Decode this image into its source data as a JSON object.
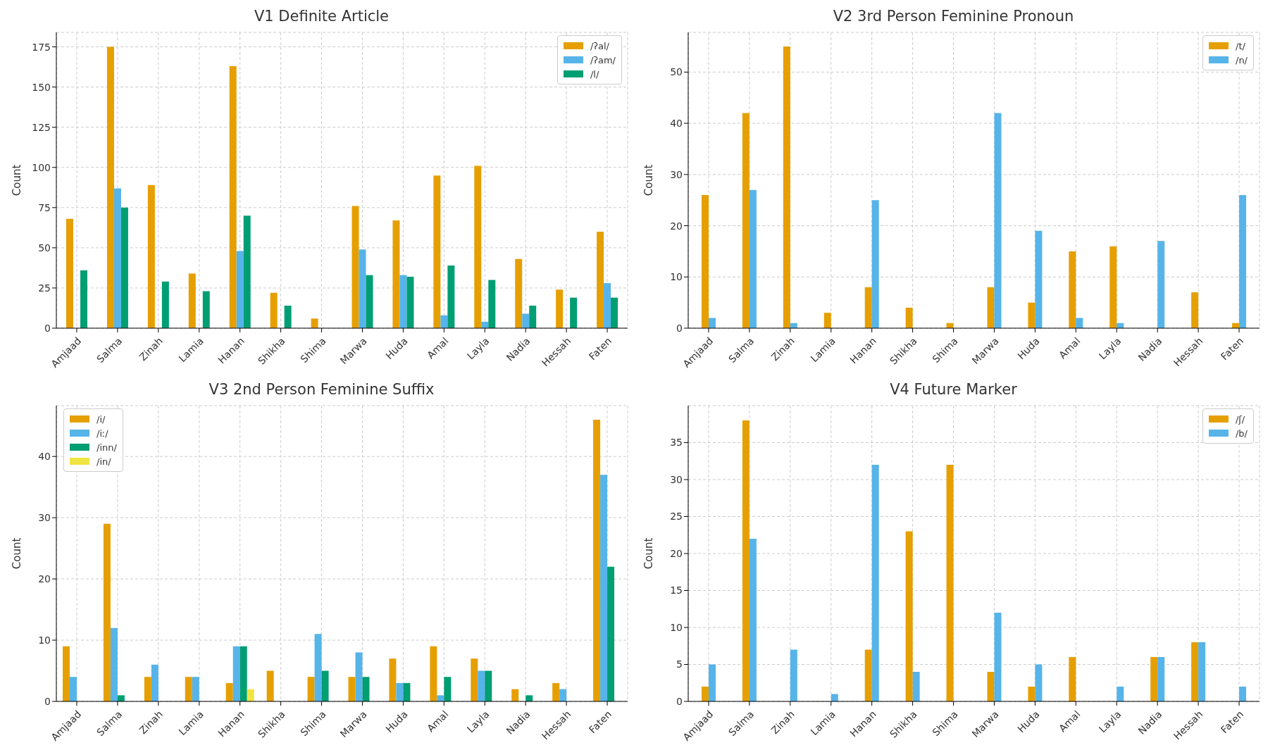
{
  "chart_data": [
    {
      "type": "bar",
      "title": "V1 Definite Article",
      "ylabel": "Count",
      "categories": [
        "Amjaad",
        "Salma",
        "Zinah",
        "Lamia",
        "Hanan",
        "Shikha",
        "Shima",
        "Marwa",
        "Huda",
        "Amal",
        "Layla",
        "Nadia",
        "Hessah",
        "Faten"
      ],
      "series": [
        {
          "name": "/ʔal/",
          "color": "#e69f00",
          "values": [
            68,
            175,
            89,
            34,
            163,
            22,
            6,
            76,
            67,
            95,
            101,
            43,
            24,
            60
          ]
        },
        {
          "name": "/ʔam/",
          "color": "#56b4e9",
          "values": [
            0,
            87,
            0,
            0,
            48,
            0,
            0,
            49,
            33,
            8,
            4,
            9,
            0,
            28
          ]
        },
        {
          "name": "/l/",
          "color": "#009e73",
          "values": [
            36,
            75,
            29,
            23,
            70,
            14,
            0,
            33,
            32,
            39,
            30,
            14,
            19,
            19
          ]
        }
      ],
      "ylim": [
        0,
        184
      ],
      "yticks": [
        0,
        25,
        50,
        75,
        100,
        125,
        150,
        175
      ],
      "grid": true,
      "legend": "top right"
    },
    {
      "type": "bar",
      "title": "V2 3rd Person Feminine Pronoun",
      "ylabel": "Count",
      "categories": [
        "Amjaad",
        "Salma",
        "Zinah",
        "Lamia",
        "Hanan",
        "Shikha",
        "Shima",
        "Marwa",
        "Huda",
        "Amal",
        "Layla",
        "Nadia",
        "Hessah",
        "Faten"
      ],
      "series": [
        {
          "name": "/t/",
          "color": "#e69f00",
          "values": [
            26,
            42,
            55,
            3,
            8,
            4,
            1,
            8,
            5,
            15,
            16,
            0,
            7,
            1
          ]
        },
        {
          "name": "/n/",
          "color": "#56b4e9",
          "values": [
            2,
            27,
            1,
            0,
            25,
            0,
            0,
            42,
            19,
            2,
            1,
            17,
            0,
            26
          ]
        }
      ],
      "ylim": [
        0,
        57.75
      ],
      "yticks": [
        0,
        10,
        20,
        30,
        40,
        50
      ],
      "grid": true,
      "legend": "top right"
    },
    {
      "type": "bar",
      "title": "V3 2nd Person Feminine Suffix",
      "ylabel": "Count",
      "categories": [
        "Amjaad",
        "Salma",
        "Zinah",
        "Lamia",
        "Hanan",
        "Shikha",
        "Shima",
        "Marwa",
        "Huda",
        "Amal",
        "Layla",
        "Nadia",
        "Hessah",
        "Faten"
      ],
      "series": [
        {
          "name": "/i/",
          "color": "#e69f00",
          "values": [
            9,
            29,
            4,
            4,
            3,
            5,
            4,
            4,
            7,
            9,
            7,
            2,
            3,
            46
          ]
        },
        {
          "name": "/iː/",
          "color": "#56b4e9",
          "values": [
            4,
            12,
            6,
            4,
            9,
            0,
            11,
            8,
            3,
            1,
            5,
            0,
            2,
            37
          ]
        },
        {
          "name": "/inn/",
          "color": "#009e73",
          "values": [
            0,
            1,
            0,
            0,
            9,
            0,
            5,
            4,
            3,
            4,
            5,
            1,
            0,
            22
          ]
        },
        {
          "name": "/in/",
          "color": "#f0e442",
          "values": [
            0,
            0,
            0,
            0,
            2,
            0,
            0,
            0,
            0,
            0,
            0,
            0,
            0,
            0
          ]
        }
      ],
      "ylim": [
        0,
        48.3
      ],
      "yticks": [
        0,
        10,
        20,
        30,
        40
      ],
      "grid": true,
      "legend": "top left"
    },
    {
      "type": "bar",
      "title": "V4 Future Marker",
      "ylabel": "Count",
      "categories": [
        "Amjaad",
        "Salma",
        "Zinah",
        "Lamia",
        "Hanan",
        "Shikha",
        "Shima",
        "Marwa",
        "Huda",
        "Amal",
        "Layla",
        "Nadia",
        "Hessah",
        "Faten"
      ],
      "series": [
        {
          "name": "/ʃ/",
          "color": "#e69f00",
          "values": [
            2,
            38,
            0,
            0,
            7,
            23,
            32,
            4,
            2,
            6,
            0,
            6,
            8,
            0
          ]
        },
        {
          "name": "/b/",
          "color": "#56b4e9",
          "values": [
            5,
            22,
            7,
            1,
            32,
            4,
            0,
            12,
            5,
            0,
            2,
            6,
            8,
            2
          ]
        }
      ],
      "ylim": [
        0,
        40
      ],
      "yticks": [
        0,
        5,
        10,
        15,
        20,
        25,
        30,
        35
      ],
      "grid": true,
      "legend": "top right"
    }
  ]
}
